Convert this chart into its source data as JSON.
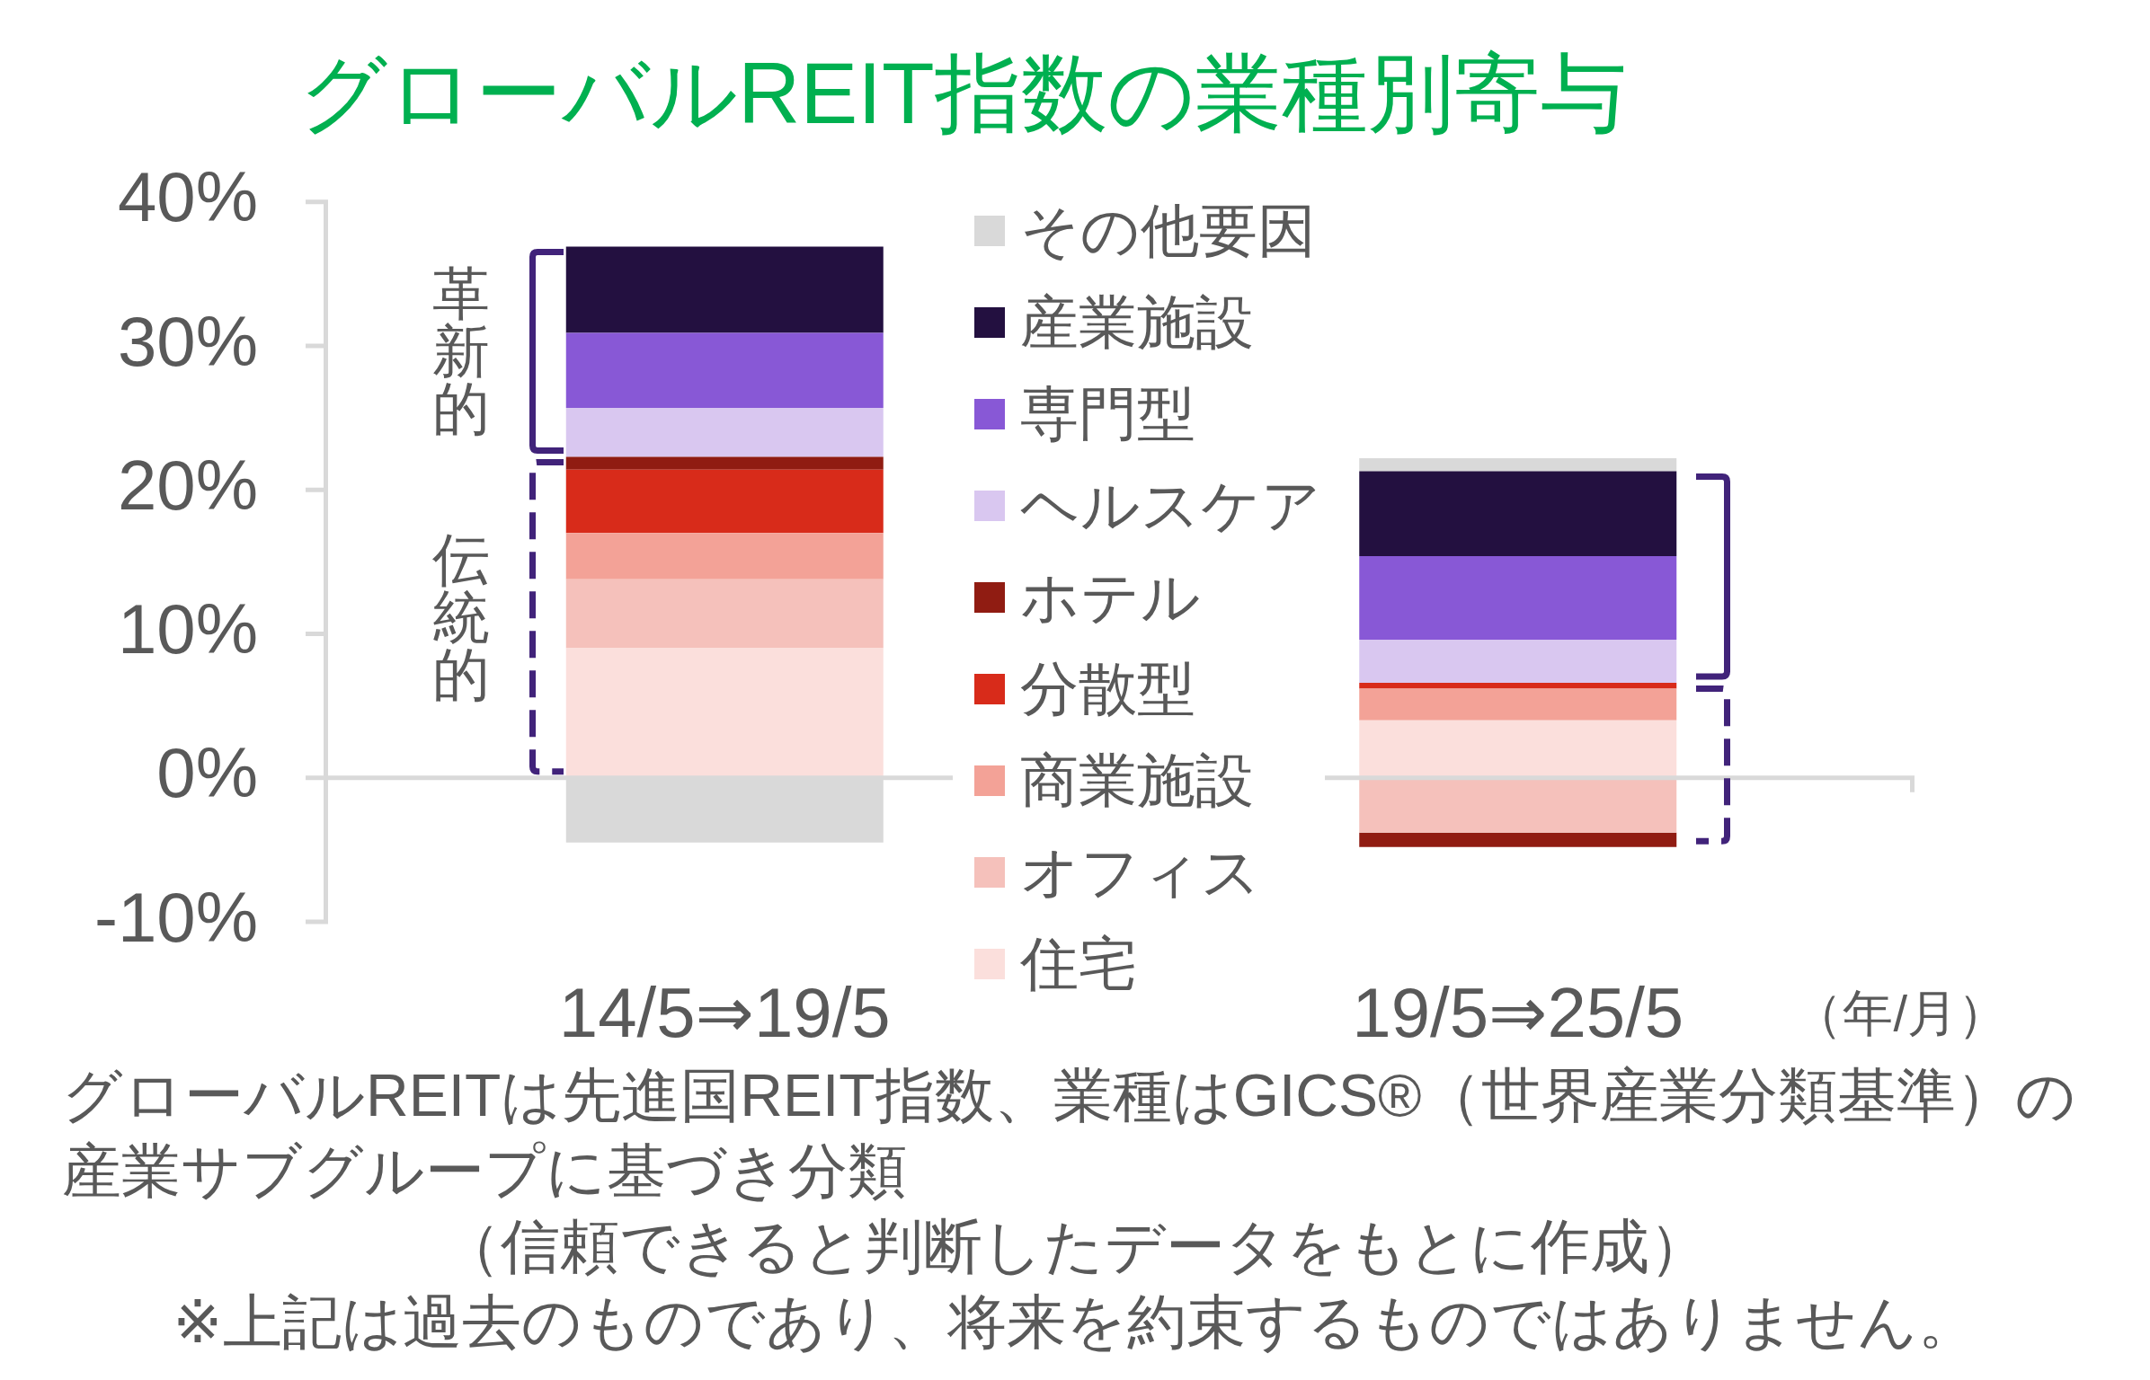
{
  "chart_data": {
    "type": "bar",
    "title": "グローバルREIT指数の業種別寄与",
    "xlabel": "（年/月）",
    "categories": [
      "14/5⇒19/5",
      "19/5⇒25/5"
    ],
    "series": [
      {
        "name": "住宅",
        "color": "#fbdfdc",
        "values": [
          9.0,
          4.0
        ]
      },
      {
        "name": "オフィス",
        "color": "#f5c1bb",
        "values": [
          4.8,
          -3.8
        ]
      },
      {
        "name": "商業施設",
        "color": "#f3a297",
        "values": [
          3.2,
          2.2
        ]
      },
      {
        "name": "分散型",
        "color": "#d82b1a",
        "values": [
          4.4,
          0.4
        ]
      },
      {
        "name": "ホテル",
        "color": "#901c12",
        "values": [
          0.9,
          -1.0
        ]
      },
      {
        "name": "ヘルスケア",
        "color": "#d9c7f0",
        "values": [
          3.4,
          3.0
        ]
      },
      {
        "name": "専門型",
        "color": "#8858d6",
        "values": [
          5.2,
          5.8
        ]
      },
      {
        "name": "産業施設",
        "color": "#231040",
        "values": [
          6.0,
          5.9
        ]
      },
      {
        "name": "その他要因",
        "color": "#d9d9d9",
        "values": [
          -4.5,
          0.9
        ]
      }
    ],
    "stacked": true,
    "ylim": [
      -10,
      40
    ],
    "yticks": [
      {
        "value": -10,
        "label": "-10%"
      },
      {
        "value": 0,
        "label": "0%"
      },
      {
        "value": 10,
        "label": "10%"
      },
      {
        "value": 20,
        "label": "20%"
      },
      {
        "value": 30,
        "label": "30%"
      },
      {
        "value": 40,
        "label": "40%"
      }
    ],
    "legend": "center",
    "annotations": [
      "革新的",
      "伝統的",
      "グローバルREITは先進国REIT指数、業種はGICS®（世界産業分類基準）の産業サブグループに基づき分類",
      "（信頼できると判断したデータをもとに作成）",
      "※上記は過去のものであり、将来を約束するものではありません。"
    ]
  }
}
